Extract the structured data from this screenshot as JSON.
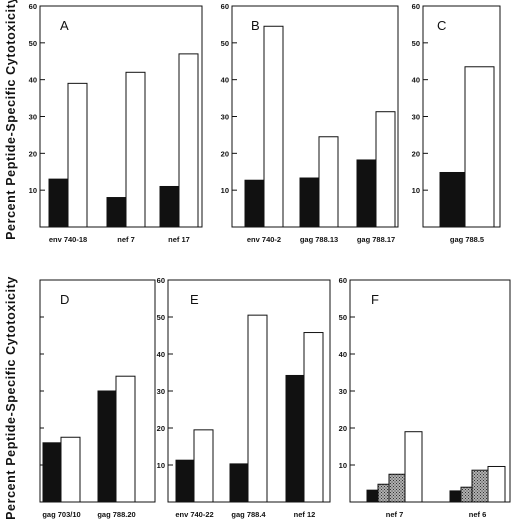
{
  "figure": {
    "ylabel": "Percent Peptide-Specific Cytotoxicity",
    "colors": {
      "filled": "#111111",
      "open": "#ffffff",
      "stippled": "#9a9a9a",
      "axis": "#111111"
    }
  },
  "chart_data": [
    {
      "type": "bar",
      "panel": "A",
      "ylim": [
        0,
        60
      ],
      "yticks": [
        "10",
        "20",
        "30",
        "40",
        "50",
        "60"
      ],
      "categories": [
        "env 740-18",
        "nef 7",
        "nef 17"
      ],
      "series": [
        {
          "style": "filled",
          "values": [
            13,
            8,
            11
          ]
        },
        {
          "style": "open",
          "values": [
            39,
            42,
            47
          ]
        }
      ]
    },
    {
      "type": "bar",
      "panel": "B",
      "ylim": [
        0,
        60
      ],
      "yticks": [
        "10",
        "20",
        "30",
        "40",
        "50",
        "60"
      ],
      "categories": [
        "env 740-2",
        "gag 788.13",
        "gag 788.17"
      ],
      "series": [
        {
          "style": "filled",
          "values": [
            12.7,
            13.3,
            18.2
          ]
        },
        {
          "style": "open",
          "values": [
            54.5,
            24.5,
            31.3
          ]
        }
      ]
    },
    {
      "type": "bar",
      "panel": "C",
      "ylim": [
        0,
        60
      ],
      "yticks": [
        "10",
        "20",
        "30",
        "40",
        "50",
        "60"
      ],
      "categories": [
        "gag 788.5"
      ],
      "series": [
        {
          "style": "filled",
          "values": [
            14.8
          ]
        },
        {
          "style": "open",
          "values": [
            43.5
          ]
        }
      ]
    },
    {
      "type": "bar",
      "panel": "D",
      "ylim": [
        0,
        60
      ],
      "yticks": [],
      "categories": [
        "gag 703/10",
        "gag 788.20"
      ],
      "series": [
        {
          "style": "filled",
          "values": [
            16,
            30
          ]
        },
        {
          "style": "open",
          "values": [
            17.5,
            34
          ]
        }
      ]
    },
    {
      "type": "bar",
      "panel": "E",
      "ylim": [
        0,
        60
      ],
      "yticks": [
        "10",
        "20",
        "30",
        "40",
        "50",
        "60"
      ],
      "categories": [
        "env 740-22",
        "gag 788.4",
        "nef 12"
      ],
      "series": [
        {
          "style": "filled",
          "values": [
            11.3,
            10.3,
            34.2
          ]
        },
        {
          "style": "open",
          "values": [
            19.5,
            50.5,
            45.8
          ]
        }
      ]
    },
    {
      "type": "bar",
      "panel": "F",
      "ylim": [
        0,
        60
      ],
      "yticks": [
        "10",
        "20",
        "30",
        "40",
        "50",
        "60"
      ],
      "categories": [
        "nef 7",
        "nef 6"
      ],
      "series": [
        {
          "style": "filled",
          "values": [
            3.2,
            3
          ]
        },
        {
          "style": "stippled",
          "values": [
            4.8,
            4
          ]
        },
        {
          "style": "stippled",
          "values": [
            7.5,
            8.6
          ]
        },
        {
          "style": "open",
          "values": [
            19,
            9.6
          ]
        }
      ]
    }
  ]
}
